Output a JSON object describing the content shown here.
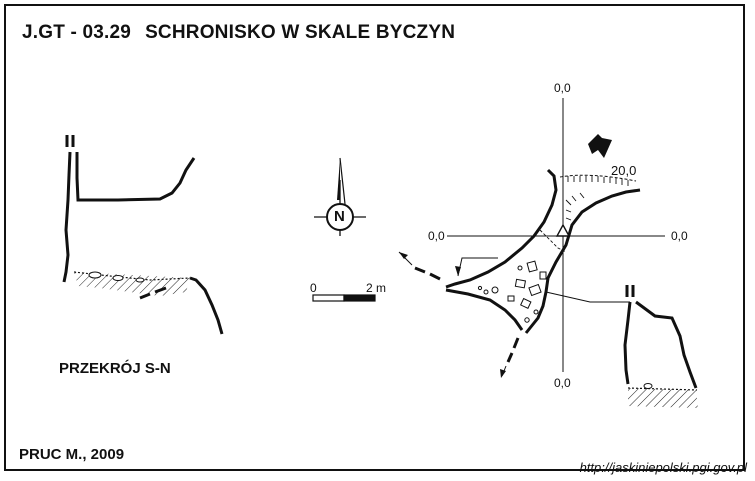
{
  "header": {
    "code": "J.GT - 03.29",
    "name": "SCHRONISKO W SKALE BYCZYN"
  },
  "section_label": "PRZEKRÓJ S-N",
  "author": "PRUC M., 2009",
  "source_url": "http://jaskiniepolski.pgi.gov.pl",
  "north_arrow": {
    "letter": "N"
  },
  "scale_bar": {
    "start": "0",
    "end": "2 m"
  },
  "plan_axes": {
    "top": "0,0",
    "bottom": "0,0",
    "left": "0,0",
    "right": "0,0",
    "elevation": "20,0"
  },
  "icons": [
    "north-arrow-icon",
    "entrance-direction-arrow-icon",
    "datum-triangle-icon"
  ]
}
